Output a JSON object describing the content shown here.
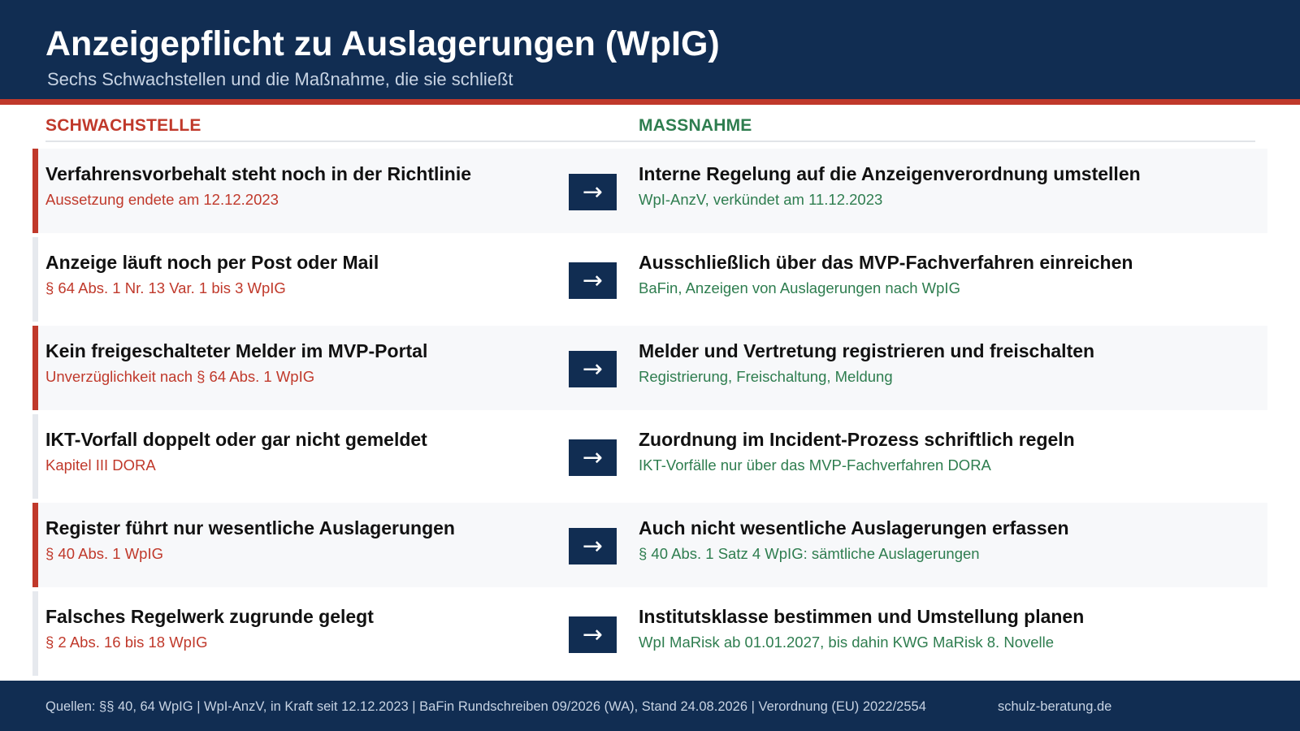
{
  "header": {
    "title": "Anzeigepflicht zu Auslagerungen (WpIG)",
    "subtitle": "Sechs Schwachstellen und die Maßnahme, die sie schließt"
  },
  "columns": {
    "weakness": "SCHWACHSTELLE",
    "measure": "MASSNAHME"
  },
  "colors": {
    "navy": "#112d52",
    "red": "#c0392b",
    "green": "#2e7d4f"
  },
  "arrow_icon": "right-arrow-icon",
  "arrow_glyph": "→",
  "rows": [
    {
      "weakness_title": "Verfahrensvorbehalt steht noch in der Richtlinie",
      "weakness_note": "Aussetzung endete am 12.12.2023",
      "measure_title": "Interne Regelung auf die Anzeigenverordnung umstellen",
      "measure_note": "WpI-AnzV, verkündet am 11.12.2023",
      "highlighted": true
    },
    {
      "weakness_title": "Anzeige läuft noch per Post oder Mail",
      "weakness_note": "§ 64 Abs. 1 Nr. 13 Var. 1 bis 3 WpIG",
      "measure_title": "Ausschließlich über das MVP-Fachverfahren einreichen",
      "measure_note": "BaFin, Anzeigen von Auslagerungen nach WpIG",
      "highlighted": false
    },
    {
      "weakness_title": "Kein freigeschalteter Melder im MVP-Portal",
      "weakness_note": "Unverzüglichkeit nach § 64 Abs. 1 WpIG",
      "measure_title": "Melder und Vertretung registrieren und freischalten",
      "measure_note": "Registrierung, Freischaltung, Meldung",
      "highlighted": true
    },
    {
      "weakness_title": "IKT-Vorfall doppelt oder gar nicht gemeldet",
      "weakness_note": "Kapitel III DORA",
      "measure_title": "Zuordnung im Incident-Prozess schriftlich regeln",
      "measure_note": "IKT-Vorfälle nur über das MVP-Fachverfahren DORA",
      "highlighted": false
    },
    {
      "weakness_title": "Register führt nur wesentliche Auslagerungen",
      "weakness_note": "§ 40 Abs. 1 WpIG",
      "measure_title": "Auch nicht wesentliche Auslagerungen erfassen",
      "measure_note": "§ 40 Abs. 1 Satz 4 WpIG: sämtliche Auslagerungen",
      "highlighted": true
    },
    {
      "weakness_title": "Falsches Regelwerk zugrunde gelegt",
      "weakness_note": "§ 2 Abs. 16 bis 18 WpIG",
      "measure_title": "Institutsklasse bestimmen und Umstellung planen",
      "measure_note": "WpI MaRisk ab 01.01.2027, bis dahin KWG MaRisk 8. Novelle",
      "highlighted": false
    }
  ],
  "footer": {
    "sources": "Quellen: §§ 40, 64 WpIG  |  WpI-AnzV, in Kraft seit 12.12.2023  |  BaFin Rundschreiben 09/2026 (WA), Stand 24.08.2026  |  Verordnung (EU) 2022/2554",
    "website": "schulz-beratung.de"
  }
}
